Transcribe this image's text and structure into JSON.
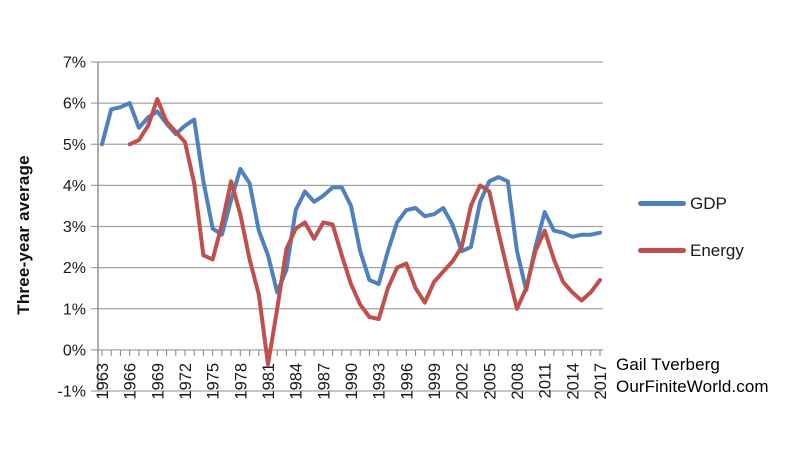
{
  "chart_data": {
    "type": "line",
    "title": "",
    "ylabel": "Three-year average",
    "xlabel": "",
    "ylim": [
      -1,
      7
    ],
    "grid": true,
    "legend_position": "right",
    "x": [
      1963,
      1964,
      1965,
      1966,
      1967,
      1968,
      1969,
      1970,
      1971,
      1972,
      1973,
      1974,
      1975,
      1976,
      1977,
      1978,
      1979,
      1980,
      1981,
      1982,
      1983,
      1984,
      1985,
      1986,
      1987,
      1988,
      1989,
      1990,
      1991,
      1992,
      1993,
      1994,
      1995,
      1996,
      1997,
      1998,
      1999,
      2000,
      2001,
      2002,
      2003,
      2004,
      2005,
      2006,
      2007,
      2008,
      2009,
      2010,
      2011,
      2012,
      2013,
      2014,
      2015,
      2016,
      2017
    ],
    "xtick_years": [
      1963,
      1966,
      1969,
      1972,
      1975,
      1978,
      1981,
      1984,
      1987,
      1990,
      1993,
      1996,
      1999,
      2002,
      2005,
      2008,
      2011,
      2014,
      2017
    ],
    "yticks": [
      "7%",
      "6%",
      "5%",
      "4%",
      "3%",
      "2%",
      "1%",
      "0%",
      "-1%"
    ],
    "ytick_values": [
      7,
      6,
      5,
      4,
      3,
      2,
      1,
      0,
      -1
    ],
    "series": [
      {
        "name": "GDP",
        "color": "#4F81BD",
        "values": [
          5.0,
          5.85,
          5.9,
          6.0,
          5.4,
          5.65,
          5.8,
          5.5,
          5.25,
          5.45,
          5.6,
          4.1,
          2.95,
          2.8,
          3.65,
          4.4,
          4.05,
          2.9,
          2.3,
          1.4,
          1.95,
          3.4,
          3.85,
          3.6,
          3.75,
          3.95,
          3.95,
          3.5,
          2.4,
          1.7,
          1.6,
          2.4,
          3.1,
          3.4,
          3.45,
          3.25,
          3.3,
          3.45,
          3.05,
          2.4,
          2.5,
          3.6,
          4.1,
          4.2,
          4.1,
          2.4,
          1.45,
          2.5,
          3.35,
          2.9,
          2.85,
          2.75,
          2.8,
          2.8,
          2.85
        ]
      },
      {
        "name": "Energy",
        "color": "#C0504D",
        "values": [
          null,
          null,
          null,
          5.0,
          5.1,
          5.45,
          6.1,
          5.55,
          5.3,
          5.05,
          4.05,
          2.3,
          2.2,
          3.05,
          4.1,
          3.3,
          2.2,
          1.35,
          -0.35,
          1.0,
          2.45,
          2.95,
          3.1,
          2.7,
          3.1,
          3.05,
          2.3,
          1.6,
          1.1,
          0.8,
          0.75,
          1.5,
          2.0,
          2.1,
          1.5,
          1.15,
          1.65,
          1.9,
          2.15,
          2.5,
          3.5,
          4.0,
          3.85,
          2.85,
          1.9,
          1.0,
          1.5,
          2.4,
          2.9,
          2.2,
          1.65,
          1.4,
          1.2,
          1.4,
          1.7
        ]
      }
    ]
  },
  "axis": {
    "y_title": "Three-year average"
  },
  "legend": {
    "gdp_label": "GDP",
    "energy_label": "Energy"
  },
  "attribution": {
    "line1": "Gail Tverberg",
    "line2": "OurFiniteWorld.com"
  },
  "colors": {
    "gdp": "#4F81BD",
    "energy": "#C0504D",
    "gridline": "#a3a3a3",
    "axis": "#8c8c8c",
    "tick_text": "#1a1a1a",
    "background": "#ffffff"
  }
}
